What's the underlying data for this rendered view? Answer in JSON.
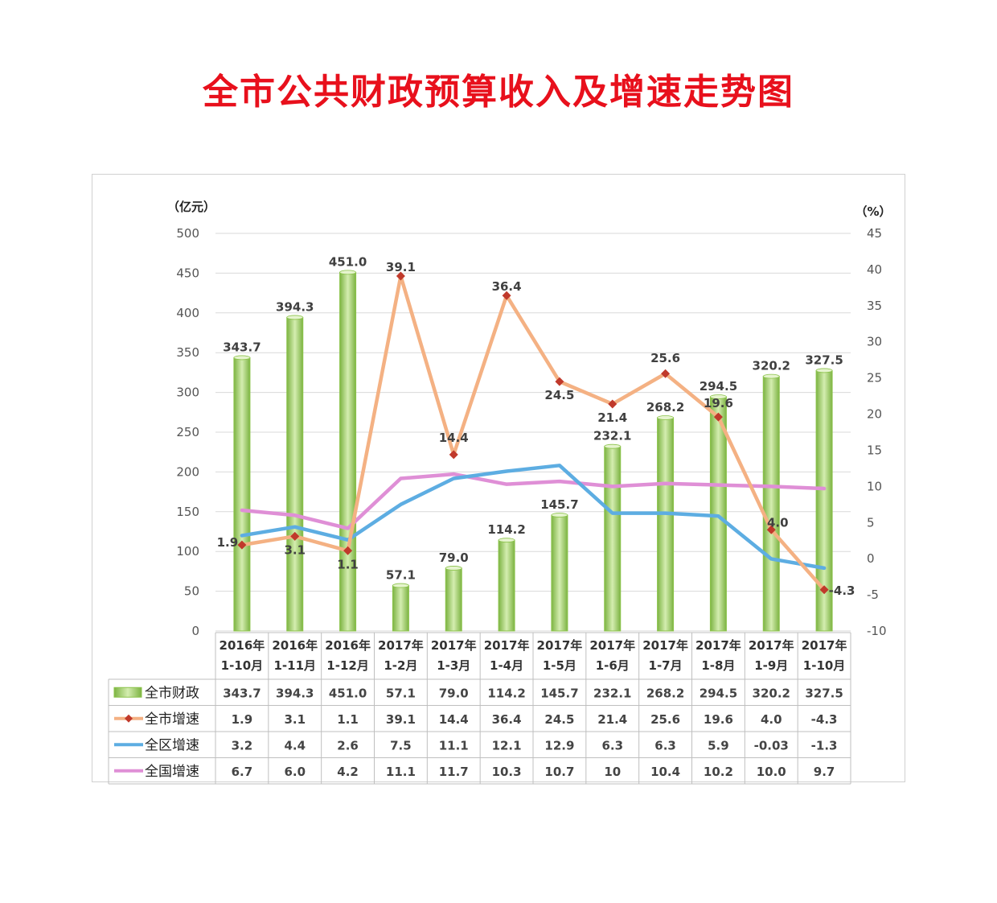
{
  "title": "全市公共财政预算收入及增速走势图",
  "chart_data": {
    "type": "bar",
    "left_axis": {
      "unit": "（亿元）",
      "ylim": [
        0,
        500
      ],
      "ticks": [
        0,
        50,
        100,
        150,
        200,
        250,
        300,
        350,
        400,
        450,
        500
      ]
    },
    "right_axis": {
      "unit": "（%）",
      "ylim": [
        -10,
        45
      ],
      "ticks": [
        -10,
        -5,
        0,
        5,
        10,
        15,
        20,
        25,
        30,
        35,
        40,
        45
      ]
    },
    "grid": true,
    "legend": "table-left",
    "categories": [
      [
        "2016年",
        "1-10月"
      ],
      [
        "2016年",
        "1-11月"
      ],
      [
        "2016年",
        "1-12月"
      ],
      [
        "2017年",
        "1-2月"
      ],
      [
        "2017年",
        "1-3月"
      ],
      [
        "2017年",
        "1-4月"
      ],
      [
        "2017年",
        "1-5月"
      ],
      [
        "2017年",
        "1-6月"
      ],
      [
        "2017年",
        "1-7月"
      ],
      [
        "2017年",
        "1-8月"
      ],
      [
        "2017年",
        "1-9月"
      ],
      [
        "2017年",
        "1-10月"
      ]
    ],
    "series": [
      {
        "name": "全市财政",
        "type": "bar",
        "axis": "left",
        "color": "#9ccc65",
        "values": [
          343.7,
          394.3,
          451.0,
          57.1,
          79.0,
          114.2,
          145.7,
          232.1,
          268.2,
          294.5,
          320.2,
          327.5
        ],
        "table": [
          "343.7",
          "394.3",
          "451.0",
          "57.1",
          "79.0",
          "114.2",
          "145.7",
          "232.1",
          "268.2",
          "294.5",
          "320.2",
          "327.5"
        ],
        "labels": [
          "343.7",
          "394.3",
          "451.0",
          "57.1",
          "79.0",
          "114.2",
          "145.7",
          "232.1",
          "268.2",
          "294.5",
          "320.2",
          "327.5"
        ]
      },
      {
        "name": "全市增速",
        "type": "line",
        "axis": "right",
        "color": "#f4b183",
        "marker_color": "#c0392b",
        "values": [
          1.9,
          3.1,
          1.1,
          39.1,
          14.4,
          36.4,
          24.5,
          21.4,
          25.6,
          19.6,
          4.0,
          -4.3
        ],
        "table": [
          "1.9",
          "3.1",
          "1.1",
          "39.1",
          "14.4",
          "36.4",
          "24.5",
          "21.4",
          "25.6",
          "19.6",
          "4.0",
          "-4.3"
        ],
        "labels": [
          "1.9",
          "3.1",
          "1.1",
          "39.1",
          "14.4",
          "36.4",
          "24.5",
          "21.4",
          "25.6",
          "19.6",
          "4.0",
          "-4.3"
        ]
      },
      {
        "name": "全区增速",
        "type": "line",
        "axis": "right",
        "color": "#5dade2",
        "values": [
          3.2,
          4.4,
          2.6,
          7.5,
          11.1,
          12.1,
          12.9,
          6.3,
          6.3,
          5.9,
          -0.03,
          -1.3
        ],
        "table": [
          "3.2",
          "4.4",
          "2.6",
          "7.5",
          "11.1",
          "12.1",
          "12.9",
          "6.3",
          "6.3",
          "5.9",
          "-0.03",
          "-1.3"
        ]
      },
      {
        "name": "全国增速",
        "type": "line",
        "axis": "right",
        "color": "#df8fd6",
        "values": [
          6.7,
          6.0,
          4.2,
          11.1,
          11.7,
          10.3,
          10.7,
          10,
          10.4,
          10.2,
          10.0,
          9.7
        ],
        "table": [
          "6.7",
          "6.0",
          "4.2",
          "11.1",
          "11.7",
          "10.3",
          "10.7",
          "10",
          "10.4",
          "10.2",
          "10.0",
          "9.7"
        ]
      }
    ]
  }
}
